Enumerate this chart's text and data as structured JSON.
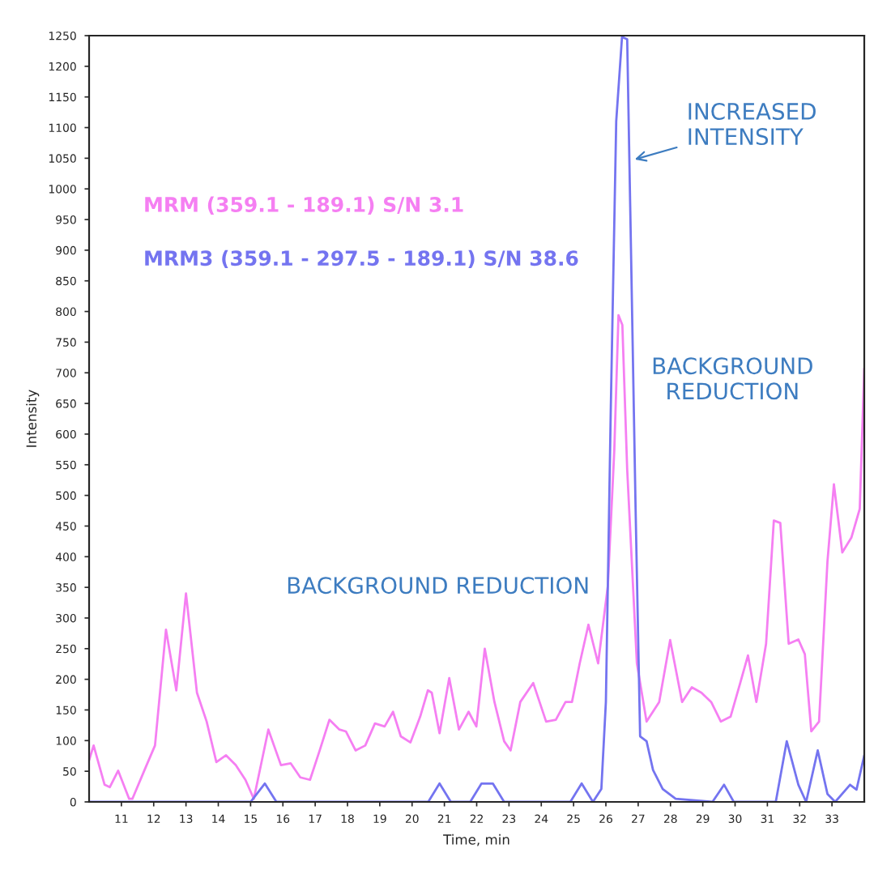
{
  "chart_data": {
    "type": "line",
    "xlabel": "Time, min",
    "ylabel": "Intensity",
    "xlim": [
      10,
      34
    ],
    "xticks": [
      11,
      12,
      13,
      14,
      15,
      16,
      17,
      18,
      19,
      20,
      21,
      22,
      23,
      24,
      25,
      26,
      27,
      28,
      29,
      30,
      31,
      32,
      33
    ],
    "ylim": [
      0,
      1250
    ],
    "yticks": [
      0,
      50,
      100,
      150,
      200,
      250,
      300,
      350,
      400,
      450,
      500,
      550,
      600,
      650,
      700,
      750,
      800,
      850,
      900,
      950,
      1000,
      1050,
      1100,
      1150,
      1200,
      1250
    ],
    "grid": false,
    "legend": false,
    "marker": "none",
    "line_style": "solid",
    "series": [
      {
        "name": "MRM (359.1 - 189.1) S/N 3.1",
        "color": "#f57ff2",
        "x": [
          10.0,
          10.14,
          10.48,
          10.64,
          10.9,
          11.24,
          11.34,
          11.74,
          12.04,
          12.38,
          12.7,
          13.0,
          13.34,
          13.64,
          13.94,
          14.24,
          14.54,
          14.84,
          15.1,
          15.55,
          15.94,
          16.24,
          16.54,
          16.84,
          17.14,
          17.44,
          17.75,
          17.95,
          18.25,
          18.55,
          18.85,
          19.15,
          19.41,
          19.65,
          19.95,
          20.25,
          20.49,
          20.61,
          20.85,
          21.15,
          21.45,
          21.75,
          21.99,
          22.25,
          22.55,
          22.85,
          23.05,
          23.35,
          23.75,
          24.15,
          24.45,
          24.75,
          24.95,
          25.19,
          25.46,
          25.76,
          26.06,
          26.26,
          26.39,
          26.51,
          26.66,
          26.96,
          27.26,
          27.65,
          27.99,
          28.36,
          28.66,
          28.96,
          29.26,
          29.56,
          29.86,
          30.16,
          30.4,
          30.66,
          30.96,
          31.2,
          31.4,
          31.66,
          31.96,
          32.16,
          32.36,
          32.6,
          32.86,
          33.06,
          33.32,
          33.6,
          33.86,
          34.0
        ],
        "values": [
          68,
          92,
          28,
          24,
          51,
          5,
          5,
          55,
          92,
          281,
          182,
          340,
          178,
          131,
          65,
          76,
          60,
          36,
          5,
          118,
          60,
          63,
          40,
          36,
          84,
          134,
          118,
          115,
          84,
          92,
          128,
          123,
          147,
          107,
          97,
          139,
          182,
          178,
          112,
          202,
          118,
          147,
          123,
          250,
          163,
          99,
          84,
          163,
          194,
          131,
          134,
          163,
          163,
          226,
          289,
          226,
          352,
          573,
          794,
          778,
          542,
          226,
          131,
          163,
          264,
          163,
          187,
          178,
          163,
          131,
          139,
          194,
          239,
          163,
          258,
          459,
          455,
          258,
          265,
          241,
          115,
          131,
          392,
          518,
          407,
          431,
          478,
          707
        ]
      },
      {
        "name": "MRM3 (359.1 - 297.5 - 189.1) S/N 38.6",
        "color": "#7474f0",
        "x": [
          10.0,
          15.0,
          15.44,
          15.8,
          20.5,
          20.85,
          21.2,
          21.8,
          22.15,
          22.5,
          22.85,
          24.9,
          25.25,
          25.6,
          25.86,
          26.0,
          26.15,
          26.32,
          26.5,
          26.66,
          26.76,
          26.92,
          27.06,
          27.26,
          27.46,
          27.76,
          28.16,
          29.3,
          29.66,
          29.96,
          31.26,
          31.6,
          31.96,
          32.2,
          32.56,
          32.86,
          33.1,
          33.56,
          33.76,
          34.0
        ],
        "values": [
          0,
          0,
          30,
          0,
          0,
          30,
          0,
          0,
          30,
          30,
          0,
          0,
          30,
          0,
          21,
          163,
          636,
          1110,
          1248,
          1244,
          952,
          478,
          107,
          99,
          52,
          21,
          5,
          0,
          28,
          0,
          0,
          99,
          28,
          0,
          84,
          13,
          0,
          28,
          20,
          76
        ]
      }
    ],
    "annotations": [
      {
        "text": "INCREASED\nINTENSITY",
        "x": 26.76,
        "y": 1046
      },
      "BACKGROUND REDUCTION",
      "BACKGROUND\nREDUCTION"
    ]
  }
}
